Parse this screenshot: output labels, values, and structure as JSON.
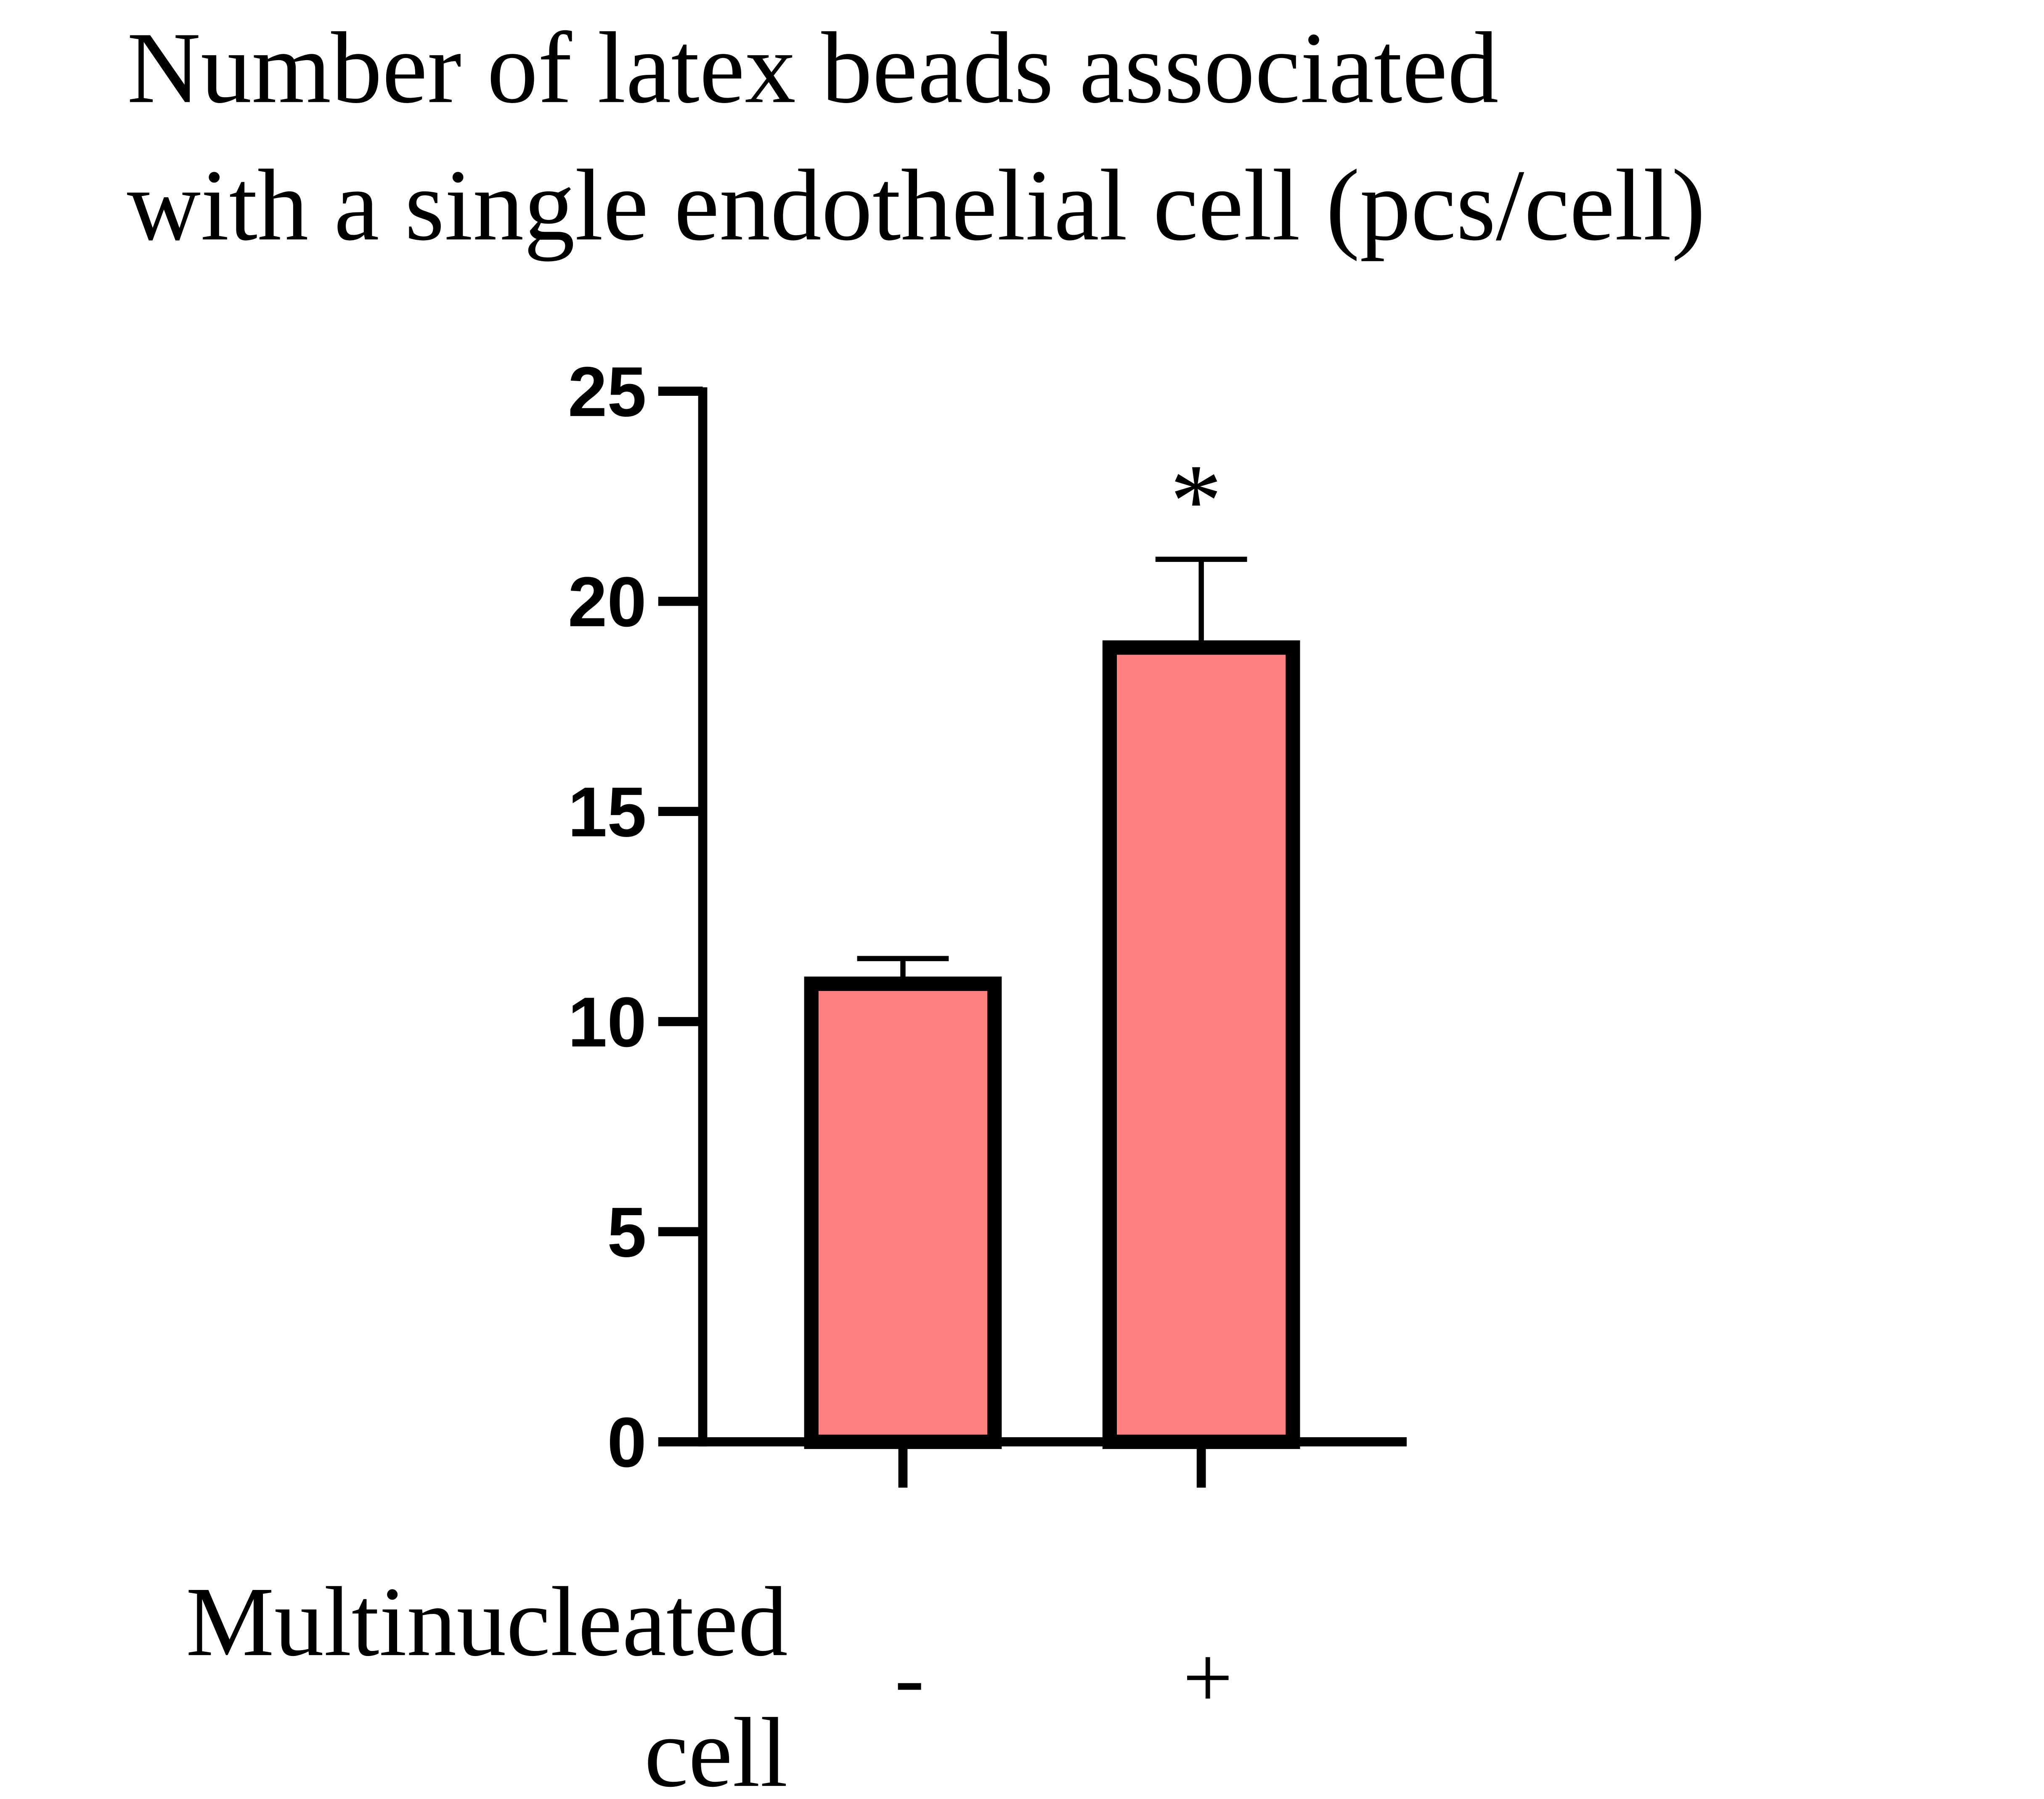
{
  "chart_data": {
    "type": "bar",
    "title": [
      "Number of latex beads associated",
      "with a single endothelial cell (pcs/cell)"
    ],
    "categories": [
      "-",
      "+"
    ],
    "values": [
      10.9,
      18.9
    ],
    "errors": [
      0.6,
      2.1
    ],
    "color": "#ff8080",
    "xlabel": [
      "Multinucleated",
      "cell"
    ],
    "ylim": [
      0,
      25
    ],
    "yticks": [
      0,
      5,
      10,
      15,
      20,
      25
    ],
    "annotations": [
      {
        "category": 1,
        "text": "*"
      }
    ]
  }
}
